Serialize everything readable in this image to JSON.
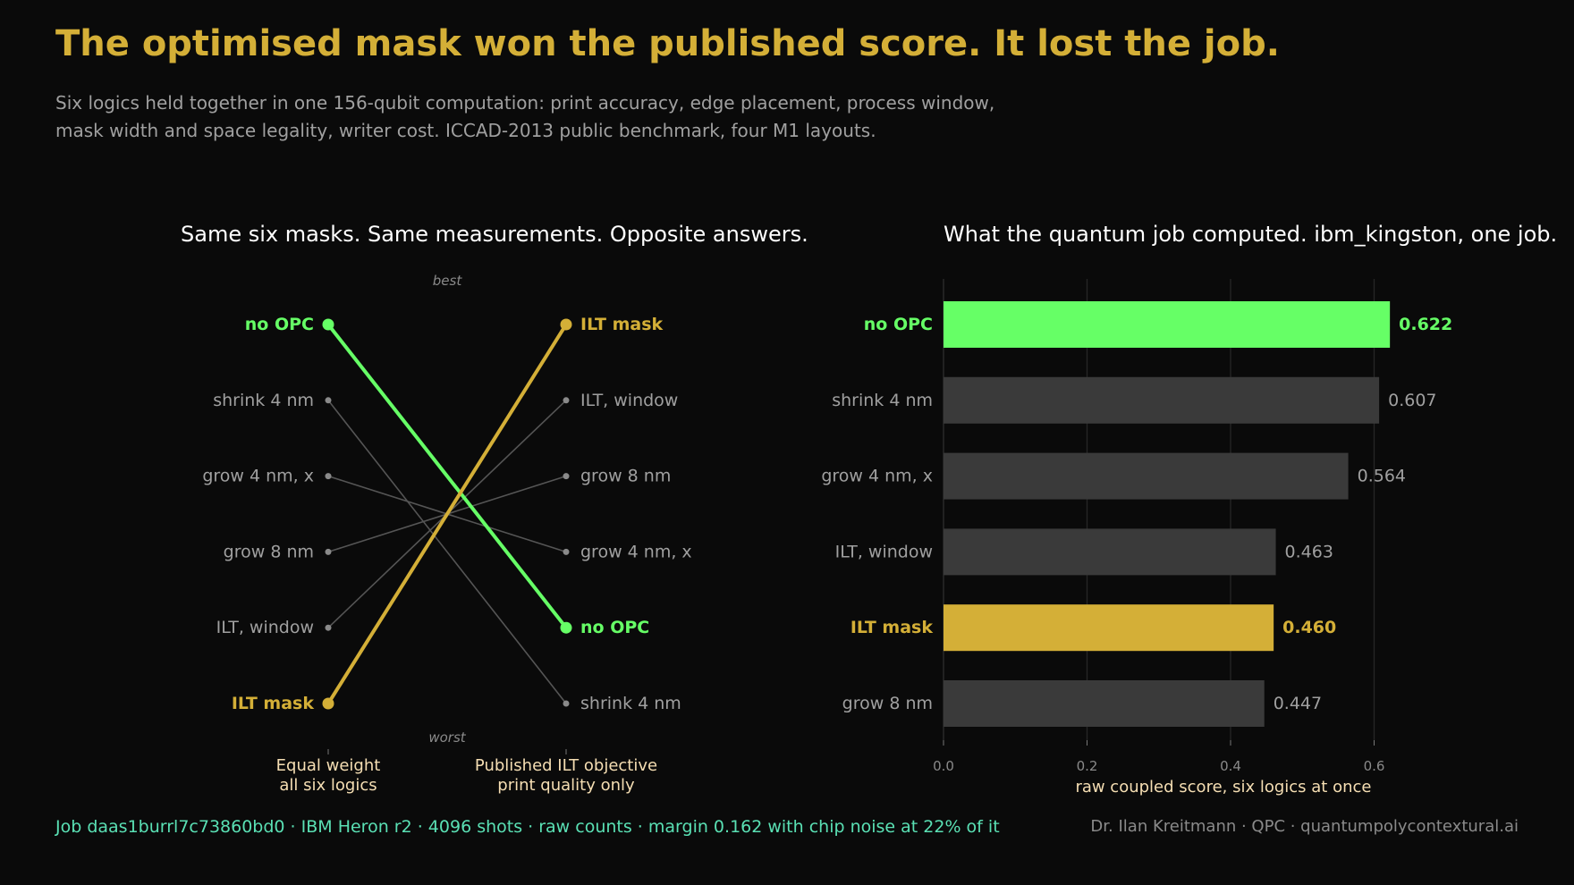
{
  "header": {
    "title": "The optimised mask won the published score. It lost the job.",
    "subtitle_line1": "Six logics held together in one 156-qubit computation: print accuracy, edge placement, process window,",
    "subtitle_line2": "mask width and space legality, writer cost. ICCAD-2013 public benchmark, four M1 layouts."
  },
  "colors": {
    "background": "#0a0a0a",
    "title": "#d4af37",
    "highlight_green": "#66ff66",
    "highlight_gold": "#d4af37",
    "muted_text": "#a0a0a0",
    "bar_gray": "#3a3a3a",
    "axis_label": "#f5deb3",
    "footer_job": "#5ae0b4"
  },
  "chart_data": [
    {
      "type": "slope",
      "title": "Same six masks. Same measurements. Opposite answers.",
      "top_annotation": "best",
      "bottom_annotation": "worst",
      "axes": [
        {
          "label_line1": "Equal weight",
          "label_line2": "all six logics"
        },
        {
          "label_line1": "Published ILT objective",
          "label_line2": "print quality only"
        }
      ],
      "left_order": [
        "no OPC",
        "shrink 4 nm",
        "grow 4 nm, x",
        "grow 8 nm",
        "ILT, window",
        "ILT mask"
      ],
      "right_order": [
        "ILT mask",
        "ILT, window",
        "grow 8 nm",
        "grow 4 nm, x",
        "no OPC",
        "shrink 4 nm"
      ],
      "highlight": {
        "no OPC": "#66ff66",
        "ILT mask": "#d4af37"
      }
    },
    {
      "type": "bar",
      "orientation": "horizontal",
      "title": "What the quantum job computed. ibm_kingston, one job.",
      "categories": [
        "no OPC",
        "shrink 4 nm",
        "grow 4 nm, x",
        "ILT, window",
        "ILT mask",
        "grow 8 nm"
      ],
      "values": [
        0.622,
        0.607,
        0.564,
        0.463,
        0.46,
        0.447
      ],
      "value_labels": [
        "0.622",
        "0.607",
        "0.564",
        "0.463",
        "0.460",
        "0.447"
      ],
      "xlabel": "raw coupled score, six logics at once",
      "xlim": [
        0,
        0.7
      ],
      "xticks": [
        0.0,
        0.2,
        0.4,
        0.6
      ],
      "xtick_labels": [
        "0.0",
        "0.2",
        "0.4",
        "0.6"
      ],
      "grid": true,
      "highlight": {
        "no OPC": "#66ff66",
        "ILT mask": "#d4af37"
      }
    }
  ],
  "footer": {
    "job": "Job daas1burrl7c73860bd0 · IBM Heron r2 · 4096 shots · raw counts · margin 0.162 with chip noise at 22% of it",
    "credit": "Dr. Ilan Kreitmann · QPC · quantumpolycontextural.ai"
  }
}
